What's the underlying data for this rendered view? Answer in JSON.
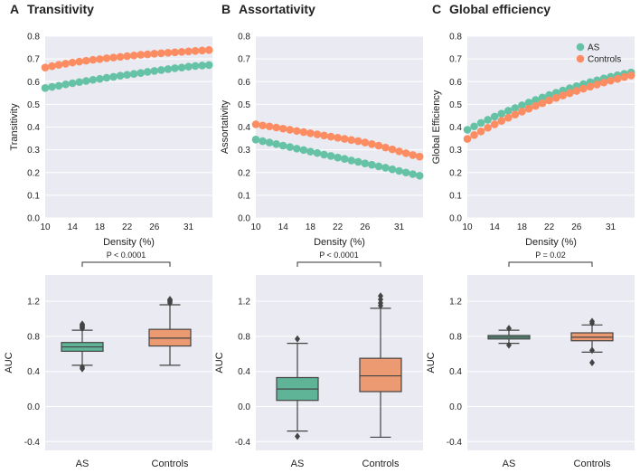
{
  "colors": {
    "AS": "#66c2a5",
    "Controls": "#fc8d62",
    "AS_box": "#5fb396",
    "Controls_box": "#ec9a72",
    "panel_bg": "#eaeaf2"
  },
  "chart_data": [
    {
      "panel": "A",
      "type": "scatter",
      "title": "Transitivity",
      "xlabel": "Density (%)",
      "ylabel": "Transitivity",
      "xlim": [
        10,
        34.5
      ],
      "ylim": [
        0,
        0.8
      ],
      "xticks": [
        10,
        14,
        18,
        22,
        26,
        31
      ],
      "yticks": [
        0,
        0.1,
        0.2,
        0.3,
        0.4,
        0.5,
        0.6,
        0.7,
        0.8
      ],
      "ytick_labels": [
        "0.0",
        "0.1",
        "0.2",
        "0.3",
        "0.4",
        "0.5",
        "0.6",
        "0.7",
        "0.8"
      ],
      "x": [
        10,
        11,
        12,
        13,
        14,
        15,
        16,
        17,
        18,
        19,
        20,
        21,
        22,
        23,
        24,
        25,
        26,
        27,
        28,
        29,
        30,
        31,
        32,
        33,
        34
      ],
      "series": [
        {
          "name": "AS",
          "values": [
            0.572,
            0.577,
            0.582,
            0.588,
            0.593,
            0.598,
            0.603,
            0.608,
            0.612,
            0.617,
            0.621,
            0.626,
            0.63,
            0.634,
            0.638,
            0.643,
            0.647,
            0.651,
            0.655,
            0.659,
            0.662,
            0.666,
            0.669,
            0.671,
            0.673
          ]
        },
        {
          "name": "Controls",
          "values": [
            0.662,
            0.668,
            0.674,
            0.679,
            0.684,
            0.688,
            0.692,
            0.696,
            0.699,
            0.703,
            0.706,
            0.709,
            0.712,
            0.715,
            0.718,
            0.72,
            0.723,
            0.725,
            0.727,
            0.729,
            0.731,
            0.733,
            0.735,
            0.737,
            0.739
          ]
        }
      ]
    },
    {
      "panel": "B",
      "type": "scatter",
      "title": "Assortativity",
      "xlabel": "Density (%)",
      "ylabel": "Assortativity",
      "xlim": [
        10,
        34.5
      ],
      "ylim": [
        0,
        0.8
      ],
      "xticks": [
        10,
        14,
        18,
        22,
        26,
        31
      ],
      "yticks": [
        0,
        0.1,
        0.2,
        0.3,
        0.4,
        0.5,
        0.6,
        0.7,
        0.8
      ],
      "ytick_labels": [
        "0.0",
        "0.1",
        "0.2",
        "0.3",
        "0.4",
        "0.5",
        "0.6",
        "0.7",
        "0.8"
      ],
      "x": [
        10,
        11,
        12,
        13,
        14,
        15,
        16,
        17,
        18,
        19,
        20,
        21,
        22,
        23,
        24,
        25,
        26,
        27,
        28,
        29,
        30,
        31,
        32,
        33,
        34
      ],
      "series": [
        {
          "name": "AS",
          "values": [
            0.345,
            0.338,
            0.332,
            0.325,
            0.318,
            0.312,
            0.305,
            0.299,
            0.292,
            0.286,
            0.279,
            0.273,
            0.266,
            0.26,
            0.253,
            0.247,
            0.24,
            0.234,
            0.227,
            0.221,
            0.214,
            0.207,
            0.2,
            0.193,
            0.186
          ]
        },
        {
          "name": "Controls",
          "values": [
            0.412,
            0.407,
            0.403,
            0.398,
            0.393,
            0.388,
            0.383,
            0.378,
            0.373,
            0.368,
            0.363,
            0.358,
            0.353,
            0.348,
            0.343,
            0.338,
            0.332,
            0.325,
            0.318,
            0.31,
            0.302,
            0.293,
            0.285,
            0.277,
            0.27
          ]
        }
      ]
    },
    {
      "panel": "C",
      "type": "scatter",
      "title": "Global efficiency",
      "xlabel": "Density (%)",
      "ylabel": "Global Efficiency",
      "xlim": [
        10,
        34.5
      ],
      "ylim": [
        0,
        0.8
      ],
      "xticks": [
        10,
        14,
        18,
        22,
        26,
        31
      ],
      "yticks": [
        0,
        0.1,
        0.2,
        0.3,
        0.4,
        0.5,
        0.6,
        0.7,
        0.8
      ],
      "ytick_labels": [
        "0.0",
        "0.1",
        "0.2",
        "0.3",
        "0.4",
        "0.5",
        "0.6",
        "0.7",
        "0.8"
      ],
      "legend": [
        "AS",
        "Controls"
      ],
      "legend_loc": "top-right",
      "x": [
        10,
        11,
        12,
        13,
        14,
        15,
        16,
        17,
        18,
        19,
        20,
        21,
        22,
        23,
        24,
        25,
        26,
        27,
        28,
        29,
        30,
        31,
        32,
        33,
        34
      ],
      "series": [
        {
          "name": "AS",
          "values": [
            0.388,
            0.403,
            0.418,
            0.432,
            0.446,
            0.459,
            0.472,
            0.484,
            0.496,
            0.508,
            0.519,
            0.53,
            0.541,
            0.551,
            0.561,
            0.571,
            0.58,
            0.589,
            0.598,
            0.606,
            0.614,
            0.621,
            0.628,
            0.634,
            0.64
          ]
        },
        {
          "name": "Controls",
          "values": [
            0.348,
            0.365,
            0.381,
            0.397,
            0.412,
            0.427,
            0.441,
            0.455,
            0.468,
            0.481,
            0.493,
            0.505,
            0.517,
            0.528,
            0.539,
            0.549,
            0.559,
            0.569,
            0.578,
            0.587,
            0.596,
            0.604,
            0.612,
            0.62,
            0.627
          ]
        }
      ]
    },
    {
      "panel": "A-box",
      "type": "box",
      "ylabel": "AUC",
      "categories": [
        "AS",
        "Controls"
      ],
      "ylim": [
        -0.5,
        1.5
      ],
      "yticks": [
        -0.4,
        0,
        0.4,
        0.8,
        1.2
      ],
      "ytick_labels": [
        "-0.4",
        "0.0",
        "0.4",
        "0.8",
        "1.2"
      ],
      "significance": "P < 0.0001",
      "boxes": [
        {
          "name": "AS",
          "whislo": 0.47,
          "q1": 0.63,
          "median": 0.68,
          "q3": 0.73,
          "whishi": 0.87,
          "fliers": [
            0.43,
            0.45,
            0.89,
            0.9,
            0.91,
            0.92,
            0.93,
            0.94
          ]
        },
        {
          "name": "Controls",
          "whislo": 0.47,
          "q1": 0.69,
          "median": 0.78,
          "q3": 0.88,
          "whishi": 1.16,
          "fliers": [
            1.18,
            1.2,
            1.21,
            1.22
          ]
        }
      ]
    },
    {
      "panel": "B-box",
      "type": "box",
      "ylabel": "AUC",
      "categories": [
        "AS",
        "Controls"
      ],
      "ylim": [
        -0.5,
        1.5
      ],
      "yticks": [
        -0.4,
        0,
        0.4,
        0.8,
        1.2
      ],
      "ytick_labels": [
        "-0.4",
        "0.0",
        "0.4",
        "0.8",
        "1.2"
      ],
      "significance": "P < 0.0001",
      "boxes": [
        {
          "name": "AS",
          "whislo": -0.28,
          "q1": 0.07,
          "median": 0.2,
          "q3": 0.33,
          "whishi": 0.72,
          "fliers": [
            -0.34,
            0.77
          ]
        },
        {
          "name": "Controls",
          "whislo": -0.35,
          "q1": 0.17,
          "median": 0.35,
          "q3": 0.55,
          "whishi": 1.12,
          "fliers": [
            1.15,
            1.18,
            1.22,
            1.26
          ]
        }
      ]
    },
    {
      "panel": "C-box",
      "type": "box",
      "ylabel": "AUC",
      "categories": [
        "AS",
        "Controls"
      ],
      "ylim": [
        -0.5,
        1.5
      ],
      "yticks": [
        -0.4,
        0,
        0.4,
        0.8,
        1.2
      ],
      "ytick_labels": [
        "-0.4",
        "0.0",
        "0.4",
        "0.8",
        "1.2"
      ],
      "significance": "P = 0.02",
      "boxes": [
        {
          "name": "AS",
          "whislo": 0.72,
          "q1": 0.77,
          "median": 0.79,
          "q3": 0.81,
          "whishi": 0.87,
          "fliers": [
            0.7,
            0.89
          ]
        },
        {
          "name": "Controls",
          "whislo": 0.62,
          "q1": 0.75,
          "median": 0.79,
          "q3": 0.84,
          "whishi": 0.93,
          "fliers": [
            0.5,
            0.64,
            0.95,
            0.97
          ]
        }
      ]
    }
  ]
}
